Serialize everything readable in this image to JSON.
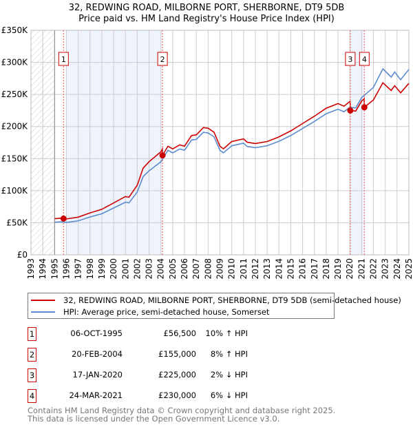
{
  "chart_data": {
    "type": "line",
    "title": "32, REDWING ROAD, MILBORNE PORT, SHERBORNE, DT9 5DB",
    "subtitle": "Price paid vs. HM Land Registry's House Price Index (HPI)",
    "xlim": [
      1993,
      2025
    ],
    "ylim": [
      0,
      350000
    ],
    "x_ticks": [
      "1993",
      "1994",
      "1995",
      "1996",
      "1997",
      "1998",
      "1999",
      "2000",
      "2001",
      "2002",
      "2003",
      "2004",
      "2005",
      "2006",
      "2007",
      "2008",
      "2009",
      "2010",
      "2011",
      "2012",
      "2013",
      "2014",
      "2015",
      "2016",
      "2017",
      "2018",
      "2019",
      "2020",
      "2021",
      "2022",
      "2023",
      "2024",
      "2025"
    ],
    "y_ticks": [
      {
        "v": 0,
        "label": "£0"
      },
      {
        "v": 50000,
        "label": "£50K"
      },
      {
        "v": 100000,
        "label": "£100K"
      },
      {
        "v": 150000,
        "label": "£150K"
      },
      {
        "v": 200000,
        "label": "£200K"
      },
      {
        "v": 250000,
        "label": "£250K"
      },
      {
        "v": 300000,
        "label": "£300K"
      },
      {
        "v": 350000,
        "label": "£350K"
      }
    ],
    "grid": true,
    "hpi_series": {
      "name": "HPI: Average price, semi-detached house, Somerset",
      "color": "#5b8bd0",
      "x": [
        1995,
        1995.5,
        1996,
        1997,
        1998,
        1999,
        2000,
        2001,
        2001.3,
        2002,
        2002.5,
        2003,
        2004,
        2004.6,
        2005,
        2005.6,
        2006,
        2006.6,
        2007,
        2007.6,
        2008,
        2008.5,
        2009,
        2009.3,
        2010,
        2011,
        2011.3,
        2012,
        2013,
        2014,
        2015,
        2016,
        2017,
        2018,
        2019,
        2019.5,
        2020,
        2020.5,
        2021,
        2022,
        2022.8,
        2023.5,
        2023.8,
        2024.3,
        2025
      ],
      "y": [
        50800,
        51500,
        50500,
        53000,
        59000,
        64000,
        73000,
        82000,
        81000,
        98000,
        122000,
        131000,
        145000,
        163000,
        159000,
        165000,
        163000,
        179000,
        180000,
        191000,
        190000,
        184000,
        163000,
        159000,
        170000,
        174000,
        169000,
        167000,
        170000,
        177000,
        186000,
        197000,
        208000,
        220000,
        227000,
        223000,
        230000,
        229000,
        245000,
        261000,
        290000,
        277000,
        285000,
        273000,
        289000
      ]
    },
    "property_series": {
      "name": "32, REDWING ROAD, MILBORNE PORT, SHERBORNE, DT9 5DB (semi-detached house)",
      "color": "#cc0000"
    },
    "sales": [
      {
        "n": "1",
        "x": 1995.76,
        "date": "06-OCT-1995",
        "price_value": 56500,
        "price": "£56,500",
        "hpi": "10% ↑ HPI"
      },
      {
        "n": "2",
        "x": 2004.14,
        "date": "20-FEB-2004",
        "price_value": 155000,
        "price": "£155,000",
        "hpi": "8% ↑ HPI"
      },
      {
        "n": "3",
        "x": 2020.04,
        "date": "17-JAN-2020",
        "price_value": 225000,
        "price": "£225,000",
        "hpi": "2% ↓ HPI"
      },
      {
        "n": "4",
        "x": 2021.23,
        "date": "24-MAR-2021",
        "price_value": 230000,
        "price": "£230,000",
        "hpi": "6% ↓ HPI"
      }
    ]
  },
  "footer": {
    "line1": "Contains HM Land Registry data © Crown copyright and database right 2025.",
    "line2": "This data is licensed under the Open Government Licence v3.0."
  }
}
